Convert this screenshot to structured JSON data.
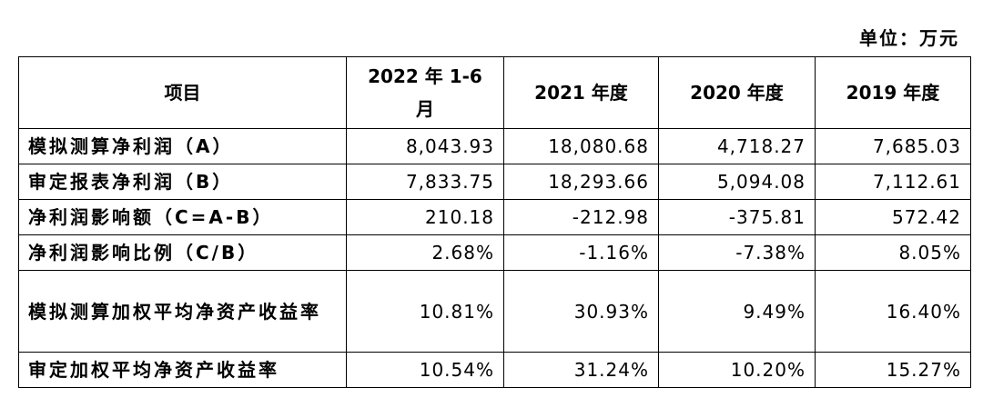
{
  "header": {
    "unit": "单位：万元"
  },
  "table": {
    "columns": [
      "项目",
      "2022 年 1-6 月",
      "2021 年度",
      "2020 年度",
      "2019 年度"
    ],
    "rows": [
      [
        "模拟测算净利润（A）",
        "8,043.93",
        "18,080.68",
        "4,718.27",
        "7,685.03"
      ],
      [
        "审定报表净利润（B）",
        "7,833.75",
        "18,293.66",
        "5,094.08",
        "7,112.61"
      ],
      [
        "净利润影响额（C=A-B）",
        "210.18",
        "-212.98",
        "-375.81",
        "572.42"
      ],
      [
        "净利润影响比例（C/B）",
        "2.68%",
        "-1.16%",
        "-7.38%",
        "8.05%"
      ],
      [
        "模拟测算加权平均净资产收益率",
        "10.81%",
        "30.93%",
        "9.49%",
        "16.40%"
      ],
      [
        "审定加权平均净资产收益率",
        "10.54%",
        "31.24%",
        "10.20%",
        "15.27%"
      ]
    ]
  }
}
